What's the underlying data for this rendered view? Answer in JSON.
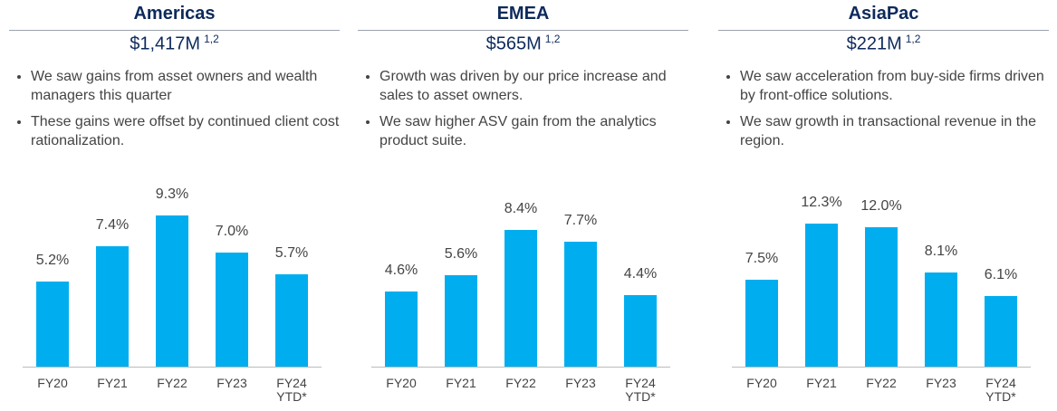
{
  "chart_data": [
    {
      "type": "bar",
      "title": "Americas",
      "subtitle": "$1,417M",
      "subtitle_sup": "1,2",
      "notes": [
        "We saw gains from asset owners and wealth managers this quarter",
        "These gains were offset by continued client cost rationalization."
      ],
      "categories": [
        "FY20",
        "FY21",
        "FY22",
        "FY23",
        "FY24 YTD*"
      ],
      "values": [
        5.2,
        7.4,
        9.3,
        7.0,
        5.7
      ],
      "value_labels": [
        "5.2%",
        "7.4%",
        "9.3%",
        "7.0%",
        "5.7%"
      ],
      "color": "#00aeef",
      "ylim": [
        0,
        11.4
      ]
    },
    {
      "type": "bar",
      "title": "EMEA",
      "subtitle": "$565M",
      "subtitle_sup": "1,2",
      "notes": [
        "Growth was driven by our price increase and sales to asset owners.",
        "We saw higher ASV gain from the analytics product suite."
      ],
      "categories": [
        "FY20",
        "FY21",
        "FY22",
        "FY23",
        "FY24 YTD*"
      ],
      "values": [
        4.6,
        5.6,
        8.4,
        7.7,
        4.4
      ],
      "value_labels": [
        "4.6%",
        "5.6%",
        "8.4%",
        "7.7%",
        "4.4%"
      ],
      "color": "#00aeef",
      "ylim": [
        0,
        11.4
      ]
    },
    {
      "type": "bar",
      "title": "AsiaPac",
      "subtitle": "$221M",
      "subtitle_sup": "1,2",
      "notes": [
        "We saw acceleration from buy-side firms driven by front-office solutions.",
        "We saw growth in transactional revenue in the region."
      ],
      "categories": [
        "FY20",
        "FY21",
        "FY22",
        "FY23",
        "FY24 YTD*"
      ],
      "values": [
        7.5,
        12.3,
        12.0,
        8.1,
        6.1
      ],
      "value_labels": [
        "7.5%",
        "12.3%",
        "12.0%",
        "8.1%",
        "6.1%"
      ],
      "color": "#00aeef",
      "ylim": [
        0,
        16
      ]
    }
  ]
}
